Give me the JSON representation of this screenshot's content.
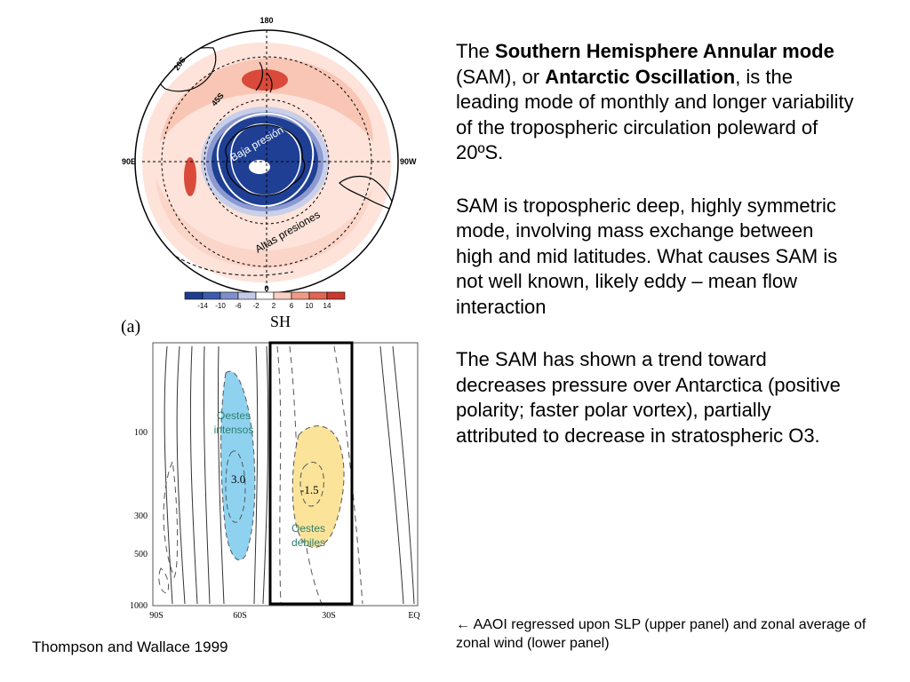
{
  "text": {
    "p1": {
      "part1": "The ",
      "bold1": "Southern Hemisphere Annular mode",
      "part2": " (SAM), or ",
      "bold2": "Antarctic Oscillation",
      "part3": ", is the leading mode of monthly and longer variability of the tropospheric circulation poleward of 20ºS."
    },
    "p2": "SAM is tropospheric deep, highly symmetric mode, involving mass exchange between high and mid latitudes. What causes SAM is not well known, likely eddy – mean flow interaction",
    "p3": "The SAM has shown a trend toward decreases pressure over Antarctica (positive polarity; faster polar vortex), partially attributed to decrease in stratospheric O3.",
    "note_arrow": "←",
    "note": " AAOI regressed upon SLP (upper panel) and zonal average of zonal wind (lower panel)",
    "credit": "Thompson and Wallace 1999"
  },
  "map": {
    "lon_180": "180",
    "lon_0": "0",
    "lon_90e": "90E",
    "lon_90w": "90W",
    "lat_20s": "20S",
    "lat_45s": "45S",
    "low_label": "Baja presión",
    "high_label": "Altas presiones",
    "colorbar_ticks": [
      "-14",
      "-10",
      "-6",
      "-2",
      "2",
      "6",
      "10",
      "14"
    ],
    "colorbar_colors": [
      "#1e3d8f",
      "#3b5cae",
      "#7f8fcc",
      "#c4cbe8",
      "#ffffff",
      "#f8d0c4",
      "#ef9a87",
      "#e26552",
      "#c93a2e"
    ],
    "region_label": "SH"
  },
  "panel": {
    "label": "(a)",
    "y_ticks": [
      "100",
      "300",
      "500",
      "1000"
    ],
    "x_ticks": [
      "90S",
      "60S",
      "30S",
      "EQ"
    ],
    "value_strong": "3.0",
    "value_weak": "-1.5",
    "strong_label_1": "Oestes",
    "strong_label_2": "intensos",
    "weak_label_1": "Oestes",
    "weak_label_2": "débiles",
    "strong_color": "#8fd2f0",
    "weak_color": "#fbe39a"
  }
}
